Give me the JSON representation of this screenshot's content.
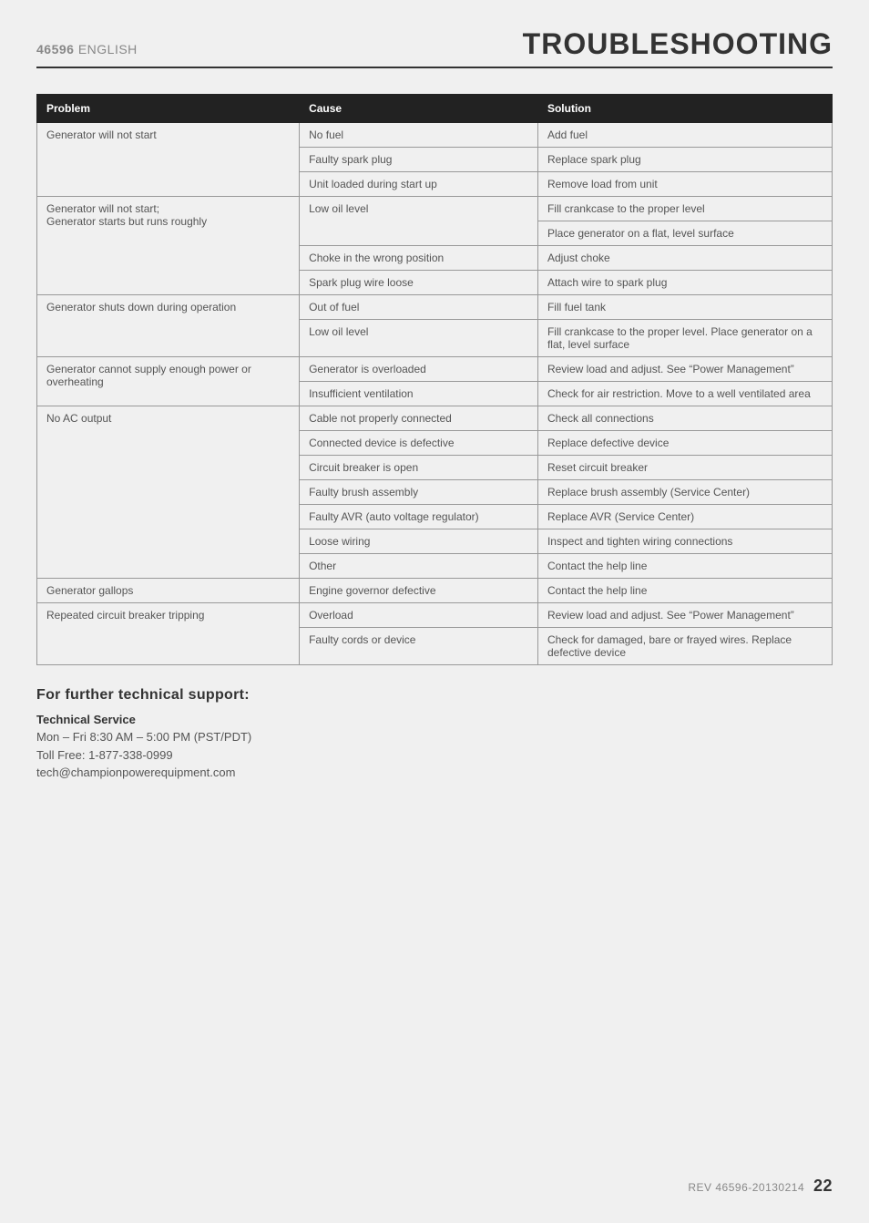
{
  "header": {
    "model": "46596",
    "language": "ENGLISH",
    "title": "TROUBLESHOOTING"
  },
  "table": {
    "columns": [
      "Problem",
      "Cause",
      "Solution"
    ],
    "groups": [
      {
        "problem": "Generator will not start",
        "rows": [
          {
            "cause": "No fuel",
            "solution": "Add fuel"
          },
          {
            "cause": "Faulty spark plug",
            "solution": "Replace spark plug"
          },
          {
            "cause": "Unit loaded during start up",
            "solution": "Remove load from unit"
          }
        ]
      },
      {
        "problem": "Generator will not start;\nGenerator starts but runs roughly",
        "rows": [
          {
            "cause": "Low oil level",
            "solution": "Fill crankcase to the proper level",
            "causeRowspan": 2
          },
          {
            "solution": "Place generator on a flat, level surface"
          },
          {
            "cause": "Choke in the wrong position",
            "solution": "Adjust choke"
          },
          {
            "cause": "Spark plug wire loose",
            "solution": "Attach wire to spark plug"
          }
        ]
      },
      {
        "problem": "Generator shuts down during operation",
        "rows": [
          {
            "cause": "Out of fuel",
            "solution": "Fill fuel tank"
          },
          {
            "cause": "Low oil level",
            "solution": "Fill crankcase to the proper level. Place generator on a flat, level surface"
          }
        ]
      },
      {
        "problem": "Generator cannot supply enough power or overheating",
        "rows": [
          {
            "cause": "Generator is overloaded",
            "solution": "Review load and adjust. See “Power Management”"
          },
          {
            "cause": "Insufficient ventilation",
            "solution": "Check for air restriction. Move to a well ventilated area"
          }
        ]
      },
      {
        "problem": "No AC output",
        "rows": [
          {
            "cause": "Cable not properly connected",
            "solution": "Check all connections"
          },
          {
            "cause": "Connected device is defective",
            "solution": "Replace defective device"
          },
          {
            "cause": "Circuit breaker is open",
            "solution": "Reset circuit breaker"
          },
          {
            "cause": "Faulty brush assembly",
            "solution": "Replace brush assembly (Service Center)"
          },
          {
            "cause": "Faulty AVR (auto voltage regulator)",
            "solution": "Replace AVR (Service Center)"
          },
          {
            "cause": "Loose wiring",
            "solution": "Inspect and tighten wiring connections"
          },
          {
            "cause": "Other",
            "solution": "Contact the help line"
          }
        ]
      },
      {
        "problem": "Generator gallops",
        "rows": [
          {
            "cause": "Engine governor defective",
            "solution": "Contact the help line"
          }
        ]
      },
      {
        "problem": "Repeated circuit breaker tripping",
        "rows": [
          {
            "cause": "Overload",
            "solution": "Review load and adjust. See “Power Management”"
          },
          {
            "cause": "Faulty cords or device",
            "solution": "Check for damaged, bare or frayed wires. Replace defective device"
          }
        ]
      }
    ]
  },
  "support": {
    "heading": "For further technical support:",
    "subheading": "Technical Service",
    "lines": [
      "Mon – Fri 8:30 AM – 5:00 PM (PST/PDT)",
      "Toll Free: 1-877-338-0999",
      "tech@championpowerequipment.com"
    ]
  },
  "footer": {
    "rev": "REV 46596-20130214",
    "page": "22"
  }
}
